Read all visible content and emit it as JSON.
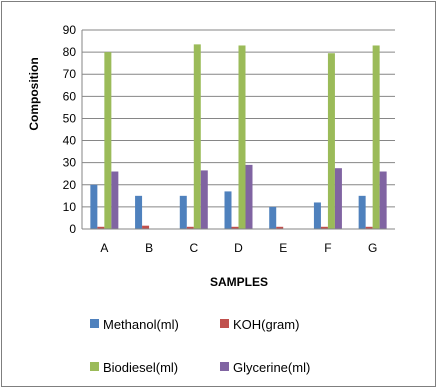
{
  "chart_data": {
    "type": "bar",
    "title": "",
    "xlabel": "SAMPLES",
    "ylabel": "Composition",
    "ylim": [
      0,
      90
    ],
    "yticks": [
      0,
      10,
      20,
      30,
      40,
      50,
      60,
      70,
      80,
      90
    ],
    "grid": true,
    "legend_position": "bottom",
    "categories": [
      "A",
      "B",
      "C",
      "D",
      "E",
      "F",
      "G"
    ],
    "series": [
      {
        "name": "Methanol(ml)",
        "color": "#4f81bd",
        "values": [
          20,
          15,
          15,
          17,
          10,
          12,
          15
        ]
      },
      {
        "name": "KOH(gram)",
        "color": "#c0504d",
        "values": [
          1,
          1.5,
          1,
          1,
          1,
          1,
          1
        ]
      },
      {
        "name": "Biodiesel(ml)",
        "color": "#9bbb59",
        "values": [
          80,
          0,
          83.5,
          83,
          0,
          79.5,
          83
        ]
      },
      {
        "name": "Glycerine(ml)",
        "color": "#8064a2",
        "values": [
          26,
          0,
          26.5,
          29,
          0,
          27.5,
          26
        ]
      }
    ]
  }
}
